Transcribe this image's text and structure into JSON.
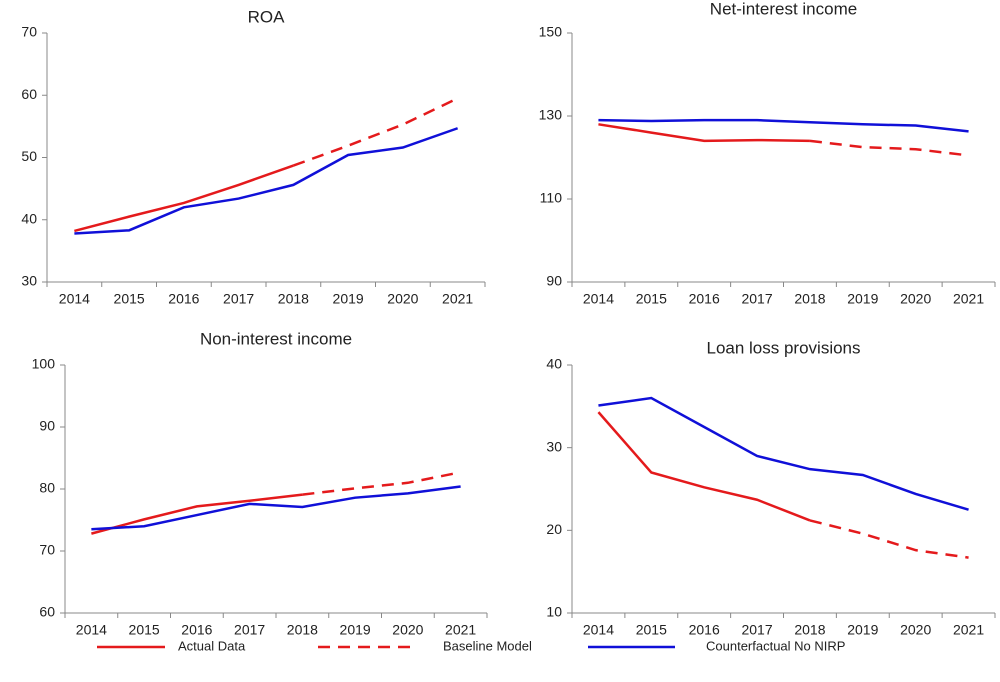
{
  "chart_data": [
    {
      "type": "line",
      "title": "ROA",
      "categories": [
        "2014",
        "2015",
        "2016",
        "2017",
        "2018",
        "2019",
        "2020",
        "2021"
      ],
      "ylim": [
        30,
        70
      ],
      "yticks": [
        30,
        40,
        50,
        60,
        70
      ],
      "series": [
        {
          "name": "Actual Data",
          "color": "#e41a1c",
          "line_style": "solid",
          "values": [
            38.2,
            40.5,
            42.7,
            45.6,
            48.7,
            null,
            null,
            null
          ]
        },
        {
          "name": "Baseline Model",
          "color": "#e41a1c",
          "line_style": "dashed",
          "values": [
            null,
            null,
            null,
            null,
            48.7,
            51.9,
            55.3,
            59.5
          ]
        },
        {
          "name": "Counterfactual No NIRP",
          "color": "#1010d8",
          "line_style": "solid",
          "values": [
            37.8,
            38.3,
            42.0,
            43.4,
            45.6,
            50.4,
            51.6,
            54.7
          ]
        }
      ]
    },
    {
      "type": "line",
      "title": "Net-interest  income",
      "categories": [
        "2014",
        "2015",
        "2016",
        "2017",
        "2018",
        "2019",
        "2020",
        "2021"
      ],
      "ylim": [
        90,
        150
      ],
      "yticks": [
        90,
        110,
        130,
        150
      ],
      "series": [
        {
          "color": "#e41a1c",
          "line_style": "solid",
          "values": [
            128,
            126,
            124,
            124.2,
            124,
            null,
            null,
            null
          ]
        },
        {
          "color": "#e41a1c",
          "line_style": "dashed",
          "values": [
            null,
            null,
            null,
            null,
            124,
            122.5,
            122,
            120.5
          ]
        },
        {
          "color": "#1010d8",
          "line_style": "solid",
          "values": [
            129,
            128.8,
            129,
            129,
            128.5,
            128,
            127.7,
            126.3
          ]
        }
      ]
    },
    {
      "type": "line",
      "title": "Non-interest  income",
      "categories": [
        "2014",
        "2015",
        "2016",
        "2017",
        "2018",
        "2019",
        "2020",
        "2021"
      ],
      "ylim": [
        60,
        100
      ],
      "yticks": [
        60,
        70,
        80,
        90,
        100
      ],
      "series": [
        {
          "color": "#e41a1c",
          "line_style": "solid",
          "values": [
            72.8,
            75.1,
            77.2,
            78.1,
            79.1,
            null,
            null,
            null
          ]
        },
        {
          "color": "#e41a1c",
          "line_style": "dashed",
          "values": [
            null,
            null,
            null,
            null,
            79.1,
            80.1,
            81,
            82.7
          ]
        },
        {
          "color": "#1010d8",
          "line_style": "solid",
          "values": [
            73.5,
            74,
            75.8,
            77.6,
            77.1,
            78.6,
            79.3,
            80.4
          ]
        }
      ]
    },
    {
      "type": "line",
      "title": "Loan loss provisions",
      "categories": [
        "2014",
        "2015",
        "2016",
        "2017",
        "2018",
        "2019",
        "2020",
        "2021"
      ],
      "ylim": [
        10,
        40
      ],
      "yticks": [
        10,
        20,
        30,
        40
      ],
      "series": [
        {
          "color": "#e41a1c",
          "line_style": "solid",
          "values": [
            34.3,
            27,
            25.2,
            23.7,
            21.2,
            null,
            null,
            null
          ]
        },
        {
          "color": "#e41a1c",
          "line_style": "dashed",
          "values": [
            null,
            null,
            null,
            null,
            21.2,
            19.6,
            17.6,
            16.7
          ]
        },
        {
          "color": "#1010d8",
          "line_style": "solid",
          "values": [
            35.1,
            36,
            32.5,
            29,
            27.4,
            26.7,
            24.4,
            22.5
          ]
        }
      ]
    }
  ]
}
